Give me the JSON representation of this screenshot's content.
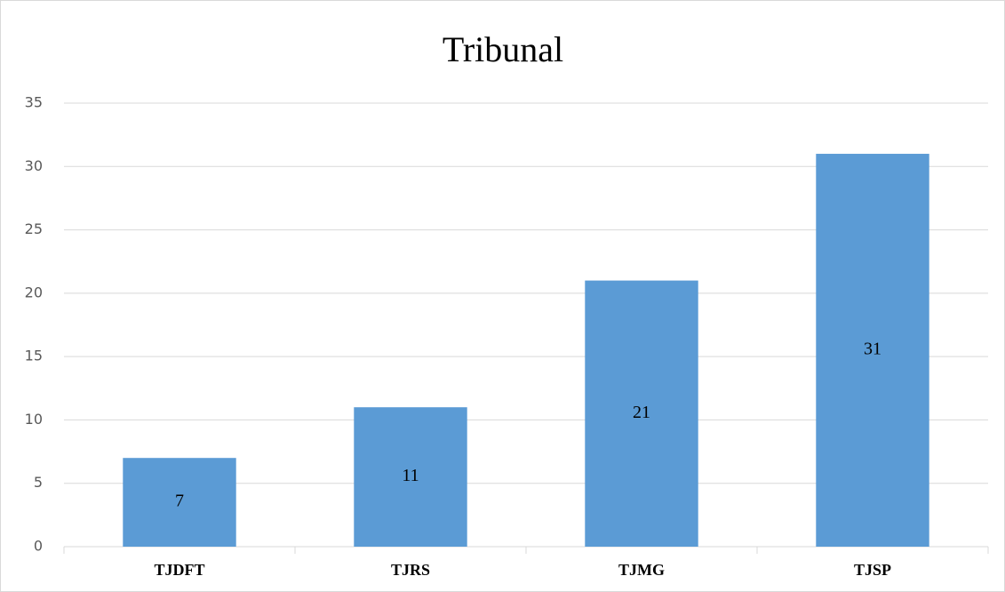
{
  "chart_data": {
    "type": "bar",
    "title": "Tribunal",
    "categories": [
      "TJDFT",
      "TJRS",
      "TJMG",
      "TJSP"
    ],
    "values": [
      7,
      11,
      21,
      31
    ],
    "color": "#5b9bd5",
    "ylim": [
      0,
      35
    ],
    "yticks": [
      0,
      5,
      10,
      15,
      20,
      25,
      30,
      35
    ],
    "grid": true
  }
}
